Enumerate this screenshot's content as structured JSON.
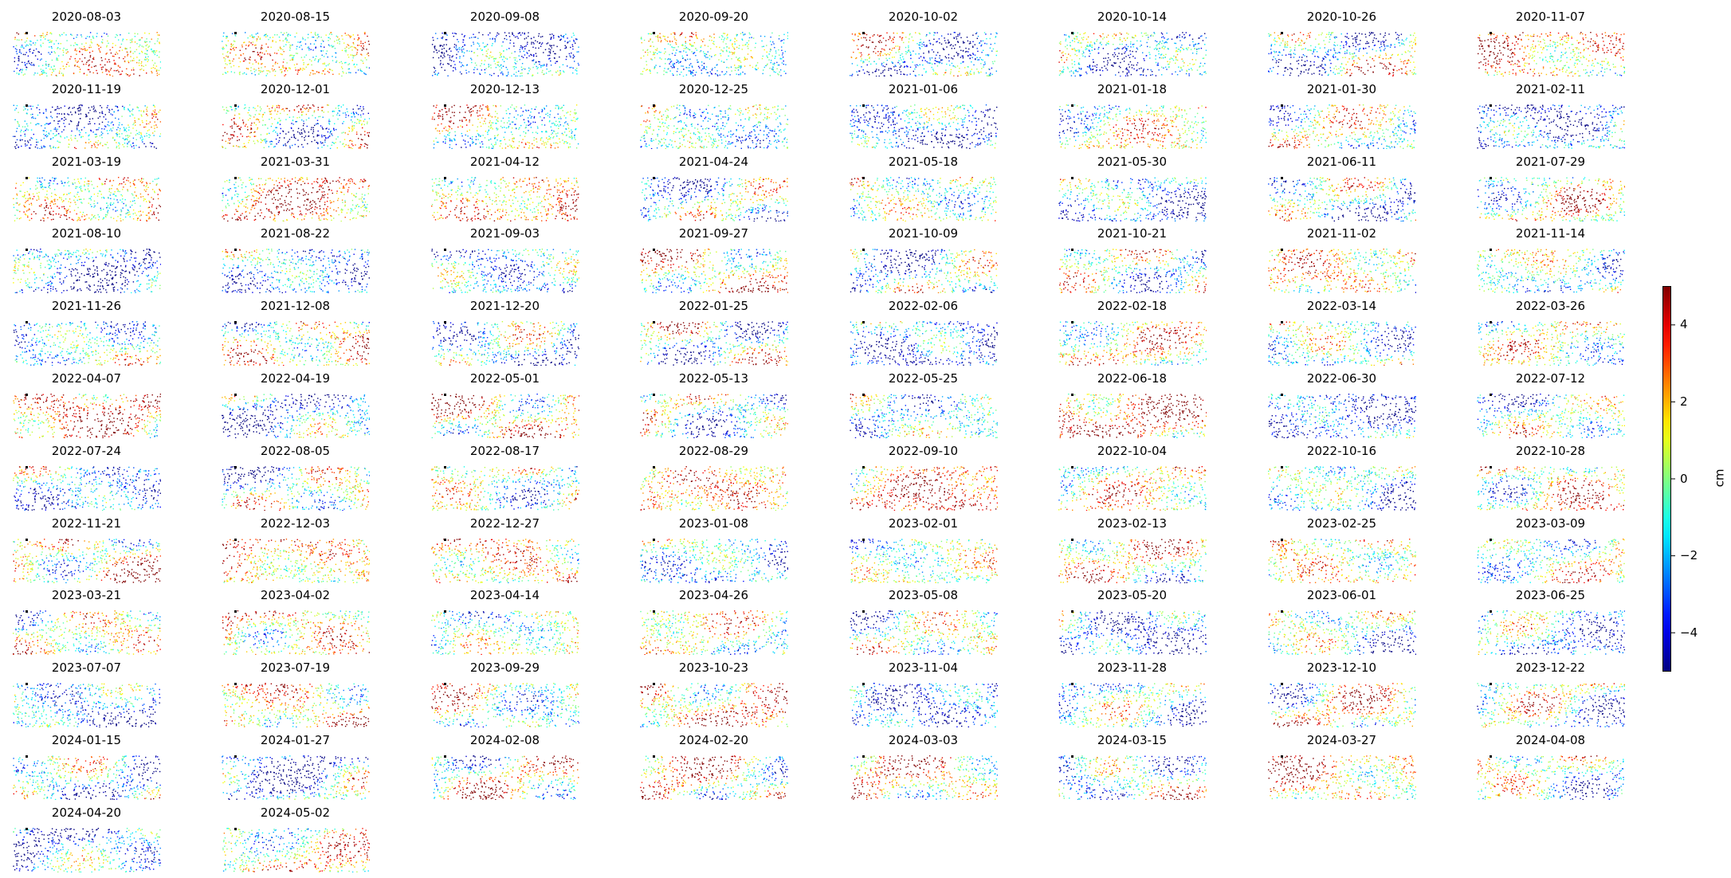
{
  "chart_data": {
    "type": "scatter",
    "title": "",
    "panels": [
      "2020-08-03",
      "2020-08-15",
      "2020-09-08",
      "2020-09-20",
      "2020-10-02",
      "2020-10-14",
      "2020-10-26",
      "2020-11-07",
      "2020-11-19",
      "2020-12-01",
      "2020-12-13",
      "2020-12-25",
      "2021-01-06",
      "2021-01-18",
      "2021-01-30",
      "2021-02-11",
      "2021-03-19",
      "2021-03-31",
      "2021-04-12",
      "2021-04-24",
      "2021-05-18",
      "2021-05-30",
      "2021-06-11",
      "2021-07-29",
      "2021-08-10",
      "2021-08-22",
      "2021-09-03",
      "2021-09-27",
      "2021-10-09",
      "2021-10-21",
      "2021-11-02",
      "2021-11-14",
      "2021-11-26",
      "2021-12-08",
      "2021-12-20",
      "2022-01-25",
      "2022-02-06",
      "2022-02-18",
      "2022-03-14",
      "2022-03-26",
      "2022-04-07",
      "2022-04-19",
      "2022-05-01",
      "2022-05-13",
      "2022-05-25",
      "2022-06-18",
      "2022-06-30",
      "2022-07-12",
      "2022-07-24",
      "2022-08-05",
      "2022-08-17",
      "2022-08-29",
      "2022-09-10",
      "2022-10-04",
      "2022-10-16",
      "2022-10-28",
      "2022-11-21",
      "2022-12-03",
      "2022-12-27",
      "2023-01-08",
      "2023-02-01",
      "2023-02-13",
      "2023-02-25",
      "2023-03-09",
      "2023-03-21",
      "2023-04-02",
      "2023-04-14",
      "2023-04-26",
      "2023-05-08",
      "2023-05-20",
      "2023-06-01",
      "2023-06-25",
      "2023-07-07",
      "2023-07-19",
      "2023-09-29",
      "2023-10-23",
      "2023-11-04",
      "2023-11-28",
      "2023-12-10",
      "2023-12-22",
      "2024-01-15",
      "2024-01-27",
      "2024-02-08",
      "2024-02-20",
      "2024-03-03",
      "2024-03-15",
      "2024-03-27",
      "2024-04-08",
      "2024-04-20",
      "2024-05-02"
    ],
    "colorbar": {
      "label": "cm",
      "colormap": "jet",
      "vmin": -5,
      "vmax": 5,
      "ticks": [
        4,
        2,
        0,
        -2,
        -4
      ],
      "tick_labels": [
        "4",
        "2",
        "0",
        "−2",
        "−4"
      ]
    },
    "grid": false,
    "axes_visible": false
  }
}
